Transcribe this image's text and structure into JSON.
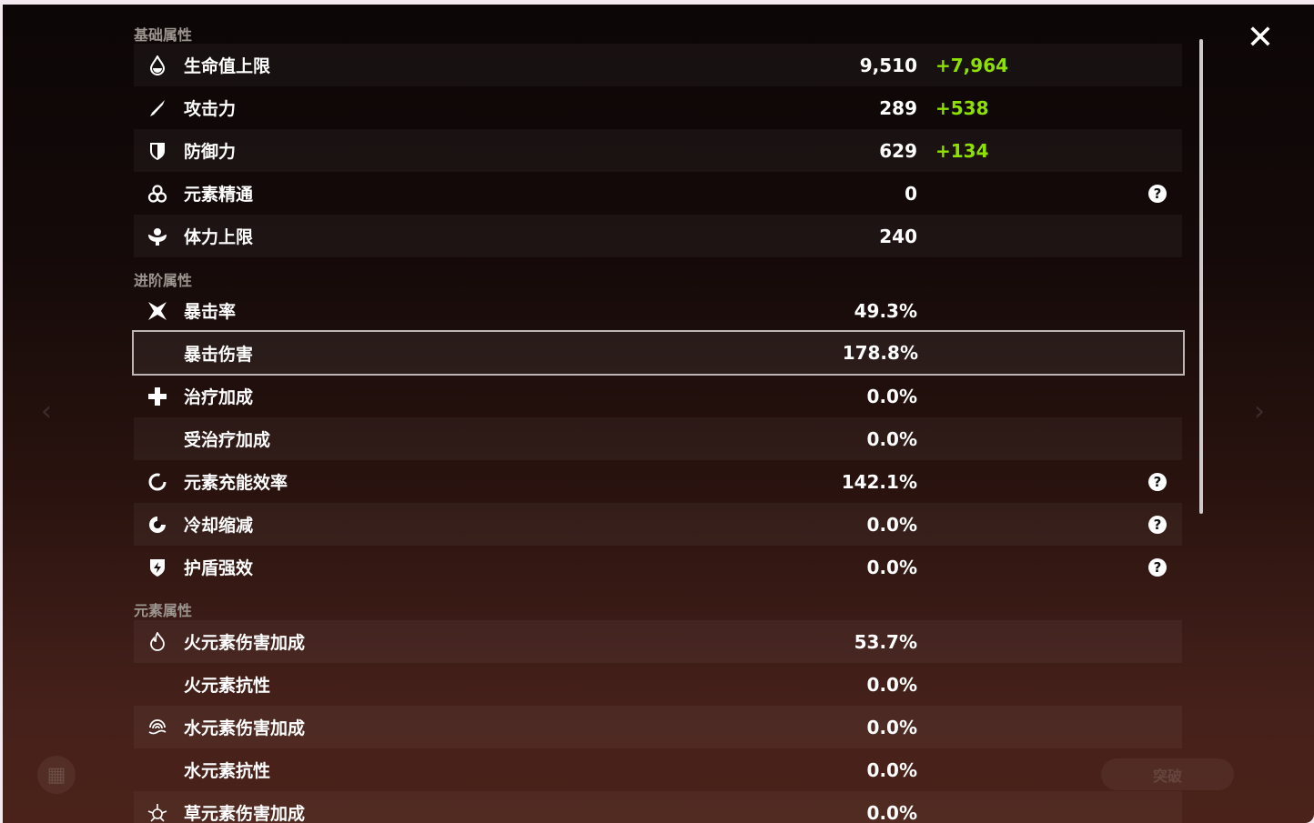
{
  "sections": [
    {
      "title": "基础属性",
      "rows": [
        {
          "icon": "hp-drop-icon",
          "label": "生命值上限",
          "value": "9,510",
          "bonus": "+7,964"
        },
        {
          "icon": "sword-icon",
          "label": "攻击力",
          "value": "289",
          "bonus": "+538"
        },
        {
          "icon": "shield-icon",
          "label": "防御力",
          "value": "629",
          "bonus": "+134"
        },
        {
          "icon": "elemental-mastery-icon",
          "label": "元素精通",
          "value": "0",
          "help": true
        },
        {
          "icon": "stamina-icon",
          "label": "体力上限",
          "value": "240"
        }
      ]
    },
    {
      "title": "进阶属性",
      "rows": [
        {
          "icon": "crit-rate-icon",
          "label": "暴击率",
          "value": "49.3%"
        },
        {
          "icon": "",
          "label": "暴击伤害",
          "value": "178.8%",
          "selected": true
        },
        {
          "icon": "healing-cross-icon",
          "label": "治疗加成",
          "value": "0.0%"
        },
        {
          "icon": "",
          "label": "受治疗加成",
          "value": "0.0%"
        },
        {
          "icon": "energy-recharge-icon",
          "label": "元素充能效率",
          "value": "142.1%",
          "help": true
        },
        {
          "icon": "cooldown-icon",
          "label": "冷却缩减",
          "value": "0.0%",
          "help": true
        },
        {
          "icon": "shield-strength-icon",
          "label": "护盾强效",
          "value": "0.0%",
          "help": true
        }
      ]
    },
    {
      "title": "元素属性",
      "rows": [
        {
          "icon": "pyro-icon",
          "label": "火元素伤害加成",
          "value": "53.7%"
        },
        {
          "icon": "",
          "label": "火元素抗性",
          "value": "0.0%"
        },
        {
          "icon": "hydro-icon",
          "label": "水元素伤害加成",
          "value": "0.0%"
        },
        {
          "icon": "",
          "label": "水元素抗性",
          "value": "0.0%"
        },
        {
          "icon": "dendro-icon",
          "label": "草元素伤害加成",
          "value": "0.0%"
        }
      ]
    }
  ],
  "help_glyph": "?",
  "close_glyph": "✕",
  "breakthrough_label": "突破",
  "colors": {
    "bonus": "#8ee000",
    "text": "#ffffff",
    "section": "#9c9590"
  }
}
